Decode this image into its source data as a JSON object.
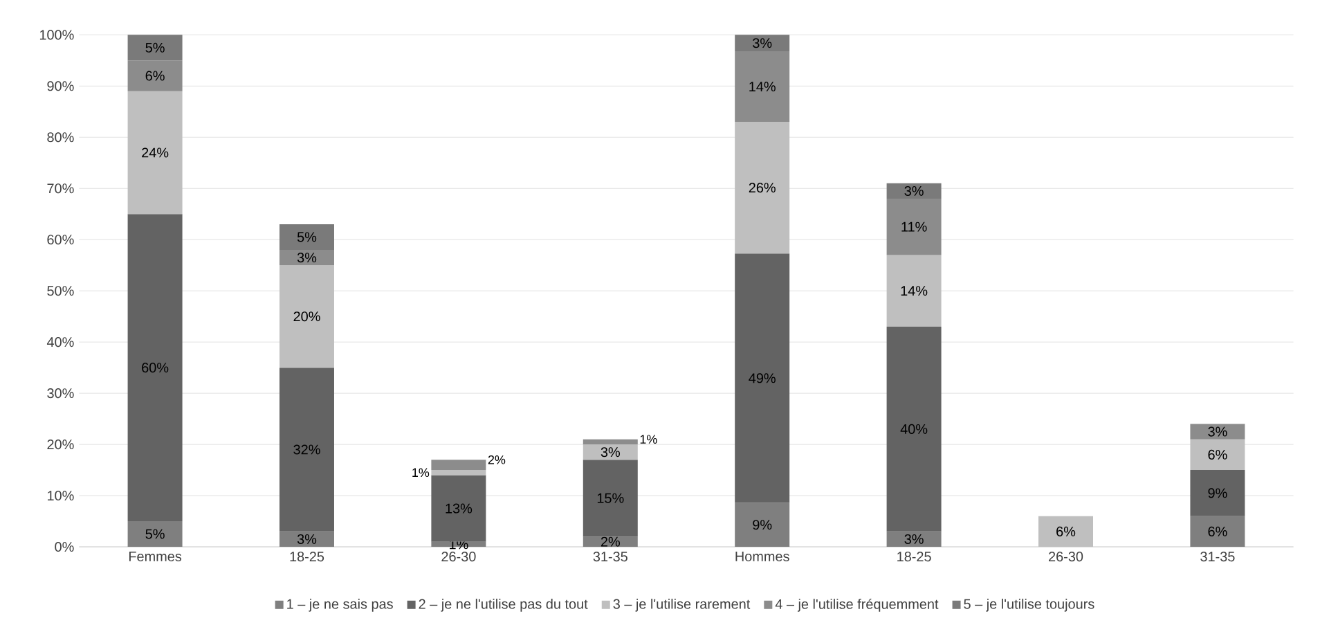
{
  "chart_data": {
    "type": "bar",
    "stacked": true,
    "categories": [
      "Femmes",
      "18-25",
      "26-30",
      "31-35",
      "Hommes",
      "18-25",
      "26-30",
      "31-35"
    ],
    "series": [
      {
        "name": "1 – je ne sais pas",
        "color": "#7f7f7f",
        "values": [
          5,
          3,
          1,
          2,
          8.6,
          3,
          null,
          6
        ],
        "value_labels": [
          "5%",
          "3%",
          "1%",
          "2%",
          "9%",
          "3%",
          null,
          "6%"
        ]
      },
      {
        "name": "2 – je ne l'utilise pas du tout",
        "color": "#636363",
        "values": [
          60,
          32,
          13,
          15,
          48.7,
          40,
          null,
          9
        ],
        "value_labels": [
          "60%",
          "32%",
          "13%",
          "15%",
          "49%",
          "40%",
          null,
          "9%"
        ]
      },
      {
        "name": "3 – je l'utilise rarement",
        "color": "#bfbfbf",
        "values": [
          24,
          20,
          1,
          3,
          25.7,
          14,
          6,
          6
        ],
        "value_labels": [
          "24%",
          "20%",
          "1%",
          "3%",
          "26%",
          "14%",
          "6%",
          "6%"
        ]
      },
      {
        "name": "4 – je l'utilise fréquemment",
        "color": "#8c8c8c",
        "values": [
          6,
          3,
          2,
          1,
          13.8,
          11,
          null,
          3
        ],
        "value_labels": [
          "6%",
          "3%",
          "2%",
          "1%",
          "14%",
          "11%",
          null,
          "3%"
        ]
      },
      {
        "name": "5 – je l'utilise toujours",
        "color": "#7a7a7a",
        "values": [
          5,
          5,
          null,
          null,
          3.2,
          3,
          null,
          null
        ],
        "value_labels": [
          "5%",
          "5%",
          null,
          null,
          "3%",
          "3%",
          null,
          null
        ]
      }
    ],
    "ylim": [
      0,
      100
    ],
    "yticks": [
      {
        "value": 0,
        "label": "0%"
      },
      {
        "value": 10,
        "label": "10%"
      },
      {
        "value": 20,
        "label": "20%"
      },
      {
        "value": 30,
        "label": "30%"
      },
      {
        "value": 40,
        "label": "40%"
      },
      {
        "value": 50,
        "label": "50%"
      },
      {
        "value": 60,
        "label": "60%"
      },
      {
        "value": 70,
        "label": "70%"
      },
      {
        "value": 80,
        "label": "80%"
      },
      {
        "value": 90,
        "label": "90%"
      },
      {
        "value": 100,
        "label": "100%"
      }
    ],
    "grid": "y",
    "legend": "bottom"
  }
}
